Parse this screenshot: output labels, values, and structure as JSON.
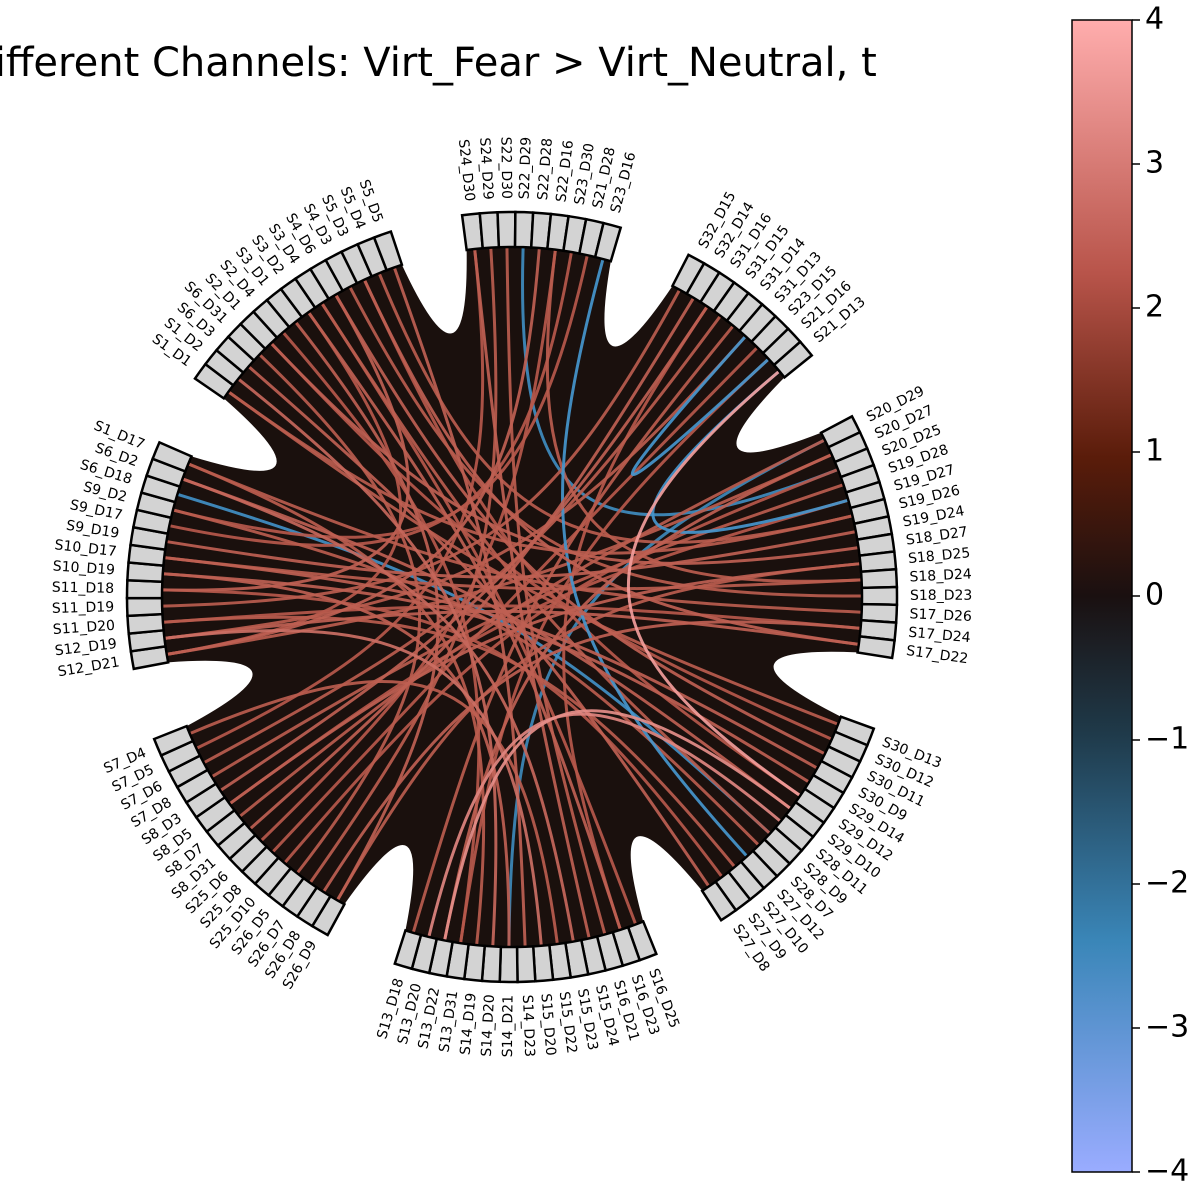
{
  "title": "icantly different Channels: Virt_Fear > Virt_Neutral,  t",
  "colorbar": {
    "ticks": [
      "4",
      "3",
      "2",
      "1",
      "0",
      "−1",
      "−2",
      "−3",
      "−4"
    ],
    "vmin": -4,
    "vmax": 4,
    "colors": {
      "high": "#ffadad",
      "mid_pos": "#5a1c0a",
      "zero": "#1a1010",
      "mid_neg": "#1f4a66",
      "low": "#9aacff"
    }
  },
  "groups": [
    {
      "id": "g1",
      "labels": [
        "S1_D1",
        "S1_D2",
        "S6_D3",
        "S6_D31",
        "S2_D1",
        "S2_D4",
        "S3_D1",
        "S3_D2",
        "S3_D4",
        "S4_D6",
        "S4_D3",
        "S5_D3",
        "S5_D4",
        "S5_D5"
      ]
    },
    {
      "id": "g2",
      "labels": [
        "S24_D30",
        "S24_D29",
        "S22_D30",
        "S22_D29",
        "S22_D28",
        "S22_D16",
        "S23_D30",
        "S21_D28",
        "S23_D16"
      ]
    },
    {
      "id": "g3",
      "labels": [
        "S32_D15",
        "S32_D14",
        "S31_D16",
        "S31_D15",
        "S31_D14",
        "S31_D13",
        "S23_D15",
        "S21_D16",
        "S21_D13"
      ]
    },
    {
      "id": "g4",
      "labels": [
        "S20_D29",
        "S20_D27",
        "S20_D25",
        "S19_D28",
        "S19_D27",
        "S19_D26",
        "S19_D24",
        "S18_D27",
        "S18_D25",
        "S18_D24",
        "S18_D23",
        "S17_D26",
        "S17_D24",
        "S17_D22"
      ]
    },
    {
      "id": "g5",
      "labels": [
        "S30_D13",
        "S30_D12",
        "S30_D11",
        "S30_D9",
        "S29_D14",
        "S29_D12",
        "S29_D10",
        "S28_D11",
        "S28_D9",
        "S28_D7",
        "S27_D12",
        "S27_D10",
        "S27_D9",
        "S27_D8"
      ]
    },
    {
      "id": "g6",
      "labels": [
        "S16_D25",
        "S16_D23",
        "S16_D21",
        "S15_D24",
        "S15_D23",
        "S15_D22",
        "S15_D20",
        "S14_D23",
        "S14_D21",
        "S14_D20",
        "S14_D19",
        "S13_D31",
        "S13_D22",
        "S13_D20",
        "S13_D18"
      ]
    },
    {
      "id": "g7",
      "labels": [
        "S26_D9",
        "S26_D8",
        "S26_D7",
        "S26_D5",
        "S25_D10",
        "S25_D8",
        "S25_D6",
        "S8_D31",
        "S8_D7",
        "S8_D5",
        "S8_D3",
        "S7_D8",
        "S7_D6",
        "S7_D5",
        "S7_D4"
      ]
    },
    {
      "id": "g8",
      "labels": [
        "S12_D21",
        "S12_D19",
        "S11_D20",
        "S11_D19",
        "S11_D18",
        "S10_D19",
        "S10_D17",
        "S9_D19",
        "S9_D17",
        "S9_D2",
        "S6_D18",
        "S6_D2",
        "S1_D17"
      ]
    }
  ],
  "links": [
    {
      "from": "S23_D16",
      "to": "S27_D12",
      "value": -3.0
    },
    {
      "from": "S21_D13",
      "to": "S29_D12",
      "value": 3.8
    },
    {
      "from": "S21_D13",
      "to": "S19_D27",
      "value": -3.0
    },
    {
      "from": "S22_D29",
      "to": "S20_D25",
      "value": -2.7
    },
    {
      "from": "S6_D18",
      "to": "S28_D9",
      "value": -2.8
    },
    {
      "from": "S20_D29",
      "to": "S14_D21",
      "value": -2.6
    },
    {
      "from": "S13_D22",
      "to": "S29_D10",
      "value": 3.6
    },
    {
      "from": "S13_D20",
      "to": "S28_D11",
      "value": 3.5
    },
    {
      "from": "S21_D16",
      "to": "S31_D13",
      "value": -3.0
    },
    {
      "from": "S3_D2",
      "to": "S16_D23",
      "value": 3.0
    },
    {
      "from": "S5_D4",
      "to": "S19_D26",
      "value": 2.9
    },
    {
      "from": "S12_D21",
      "to": "S20_D27",
      "value": 2.9
    },
    {
      "from": "S11_D20",
      "to": "S17_D24",
      "value": 2.8
    },
    {
      "from": "S9_D2",
      "to": "S21_D28",
      "value": 2.8
    },
    {
      "from": "S7_D6",
      "to": "S31_D15",
      "value": 2.9
    },
    {
      "from": "S8_D5",
      "to": "S18_D25",
      "value": 3.0
    },
    {
      "from": "S25_D6",
      "to": "S22_D16",
      "value": 2.8
    },
    {
      "from": "S26_D7",
      "to": "S24_D29",
      "value": 2.9
    },
    {
      "from": "S1_D2",
      "to": "S14_D20",
      "value": 3.1
    },
    {
      "from": "S2_D4",
      "to": "S13_D31",
      "value": 2.8
    },
    {
      "from": "S4_D6",
      "to": "S30_D11",
      "value": 3.0
    },
    {
      "from": "S10_D17",
      "to": "S18_D24",
      "value": 2.9
    },
    {
      "from": "S11_D18",
      "to": "S27_D9",
      "value": 2.8
    },
    {
      "from": "S12_D19",
      "to": "S15_D20",
      "value": 3.2
    },
    {
      "from": "S7_D8",
      "to": "S19_D28",
      "value": 2.9
    },
    {
      "from": "S8_D31",
      "to": "S32_D14",
      "value": 3.0
    },
    {
      "from": "S25_D10",
      "to": "S20_D25",
      "value": 2.8
    },
    {
      "from": "S26_D9",
      "to": "S3_D1",
      "value": 3.0
    },
    {
      "from": "S1_D17",
      "to": "S17_D26",
      "value": 2.9
    },
    {
      "from": "S6_D2",
      "to": "S15_D23",
      "value": 3.1
    },
    {
      "from": "S9_D17",
      "to": "S23_D30",
      "value": 2.8
    },
    {
      "from": "S10_D19",
      "to": "S29_D14",
      "value": 3.0
    },
    {
      "from": "S5_D5",
      "to": "S14_D23",
      "value": 3.0
    },
    {
      "from": "S6_D31",
      "to": "S26_D5",
      "value": 2.9
    },
    {
      "from": "S2_D1",
      "to": "S18_D27",
      "value": 3.0
    },
    {
      "from": "S24_D30",
      "to": "S7_D5",
      "value": 2.8
    },
    {
      "from": "S22_D30",
      "to": "S16_D21",
      "value": 2.9
    },
    {
      "from": "S22_D28",
      "to": "S12_D21",
      "value": 3.0
    },
    {
      "from": "S32_D15",
      "to": "S11_D19",
      "value": 2.9
    },
    {
      "from": "S31_D16",
      "to": "S8_D3",
      "value": 3.0
    },
    {
      "from": "S31_D14",
      "to": "S13_D18",
      "value": 2.9
    },
    {
      "from": "S23_D15",
      "to": "S25_D8",
      "value": 2.8
    },
    {
      "from": "S19_D24",
      "to": "S9_D19",
      "value": 3.0
    },
    {
      "from": "S18_D23",
      "to": "S4_D3",
      "value": 2.9
    },
    {
      "from": "S17_D22",
      "to": "S12_D19",
      "value": 3.0
    },
    {
      "from": "S30_D13",
      "to": "S1_D1",
      "value": 2.9
    },
    {
      "from": "S30_D9",
      "to": "S10_D17",
      "value": 3.0
    },
    {
      "from": "S29_D12",
      "to": "S5_D3",
      "value": 2.8
    },
    {
      "from": "S28_D7",
      "to": "S9_D2",
      "value": 2.9
    },
    {
      "from": "S27_D8",
      "to": "S6_D3",
      "value": 3.0
    },
    {
      "from": "S27_D10",
      "to": "S11_D20",
      "value": 2.9
    },
    {
      "from": "S16_D25",
      "to": "S3_D4",
      "value": 2.8
    },
    {
      "from": "S15_D24",
      "to": "S24_D30",
      "value": 3.0
    },
    {
      "from": "S15_D22",
      "to": "S7_D4",
      "value": 2.9
    },
    {
      "from": "S14_D19",
      "to": "S1_D17",
      "value": 2.9
    },
    {
      "from": "S13_D31",
      "to": "S21_D16",
      "value": 2.8
    },
    {
      "from": "S8_D7",
      "to": "S20_D29",
      "value": 2.9
    },
    {
      "from": "S26_D8",
      "to": "S17_D24",
      "value": 3.0
    },
    {
      "from": "S3_D2",
      "to": "S12_D21",
      "value": 2.8
    },
    {
      "from": "S4_D6",
      "to": "S11_D18",
      "value": 3.0
    },
    {
      "from": "S1_D1",
      "to": "S19_D26",
      "value": 2.9
    },
    {
      "from": "S2_D1",
      "to": "S30_D12",
      "value": 2.8
    },
    {
      "from": "S5_D3",
      "to": "S17_D22",
      "value": 3.0
    },
    {
      "from": "S22_D16",
      "to": "S18_D24",
      "value": 2.9
    },
    {
      "from": "S31_D13",
      "to": "S12_D19",
      "value": 2.9
    },
    {
      "from": "S20_D27",
      "to": "S13_D22",
      "value": 3.0
    },
    {
      "from": "S19_D27",
      "to": "S8_D5",
      "value": 2.8
    },
    {
      "from": "S18_D25",
      "to": "S26_D9",
      "value": 2.9
    },
    {
      "from": "S29_D10",
      "to": "S6_D2",
      "value": 3.0
    },
    {
      "from": "S28_D9",
      "to": "S3_D4",
      "value": 2.9
    },
    {
      "from": "S16_D23",
      "to": "S31_D16",
      "value": 2.8
    },
    {
      "from": "S14_D21",
      "to": "S10_D19",
      "value": 3.0
    }
  ]
}
